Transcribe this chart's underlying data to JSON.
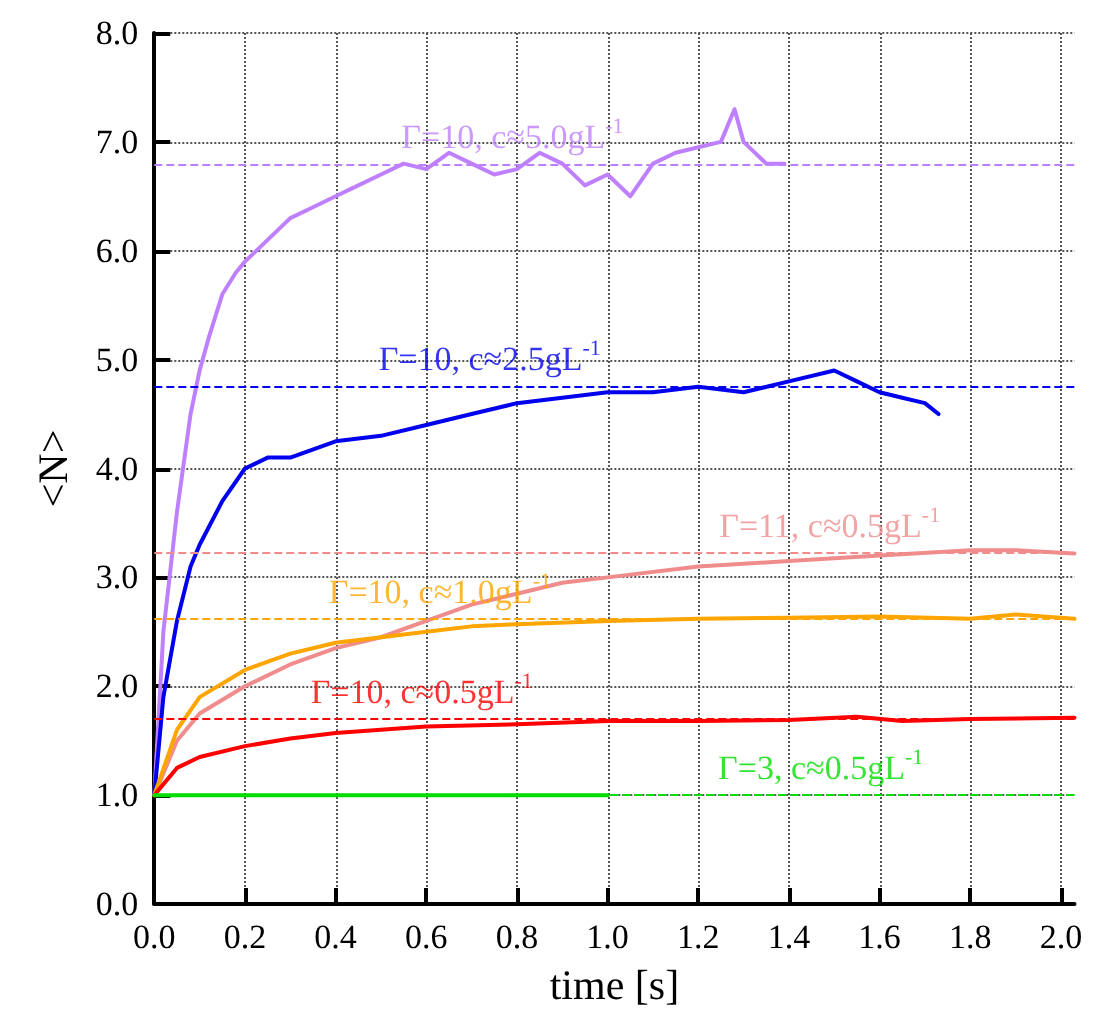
{
  "chart_data": {
    "type": "line",
    "xlabel": "time [s]",
    "ylabel": "<N>",
    "xlim": [
      0,
      2.03
    ],
    "ylim": [
      0,
      8
    ],
    "xticks": [
      {
        "value": 0,
        "label": "0.0"
      },
      {
        "value": 0.2,
        "label": "0.2"
      },
      {
        "value": 0.4,
        "label": "0.4"
      },
      {
        "value": 0.6,
        "label": "0.6"
      },
      {
        "value": 0.8,
        "label": "0.8"
      },
      {
        "value": 1,
        "label": "1.0"
      },
      {
        "value": 1.2,
        "label": "1.2"
      },
      {
        "value": 1.4,
        "label": "1.4"
      },
      {
        "value": 1.6,
        "label": "1.6"
      },
      {
        "value": 1.8,
        "label": "1.8"
      },
      {
        "value": 2,
        "label": "2.0"
      }
    ],
    "yticks": [
      {
        "value": 0,
        "label": "0.0"
      },
      {
        "value": 1,
        "label": "1.0"
      },
      {
        "value": 2,
        "label": "2.0"
      },
      {
        "value": 3,
        "label": "3.0"
      },
      {
        "value": 4,
        "label": "4.0"
      },
      {
        "value": 5,
        "label": "5.0"
      },
      {
        "value": 6,
        "label": "6.0"
      },
      {
        "value": 7,
        "label": "7.0"
      },
      {
        "value": 8,
        "label": "8.0"
      }
    ],
    "grid": true,
    "marker": "none",
    "line_style": "solid",
    "series": [
      {
        "color": "#bf80ff",
        "x": [
          0,
          0.02,
          0.05,
          0.08,
          0.1,
          0.12,
          0.15,
          0.18,
          0.2,
          0.25,
          0.3,
          0.35,
          0.4,
          0.45,
          0.5,
          0.55,
          0.6,
          0.65,
          0.7,
          0.75,
          0.8,
          0.85,
          0.9,
          0.95,
          1.0,
          1.05,
          1.1,
          1.15,
          1.2,
          1.25,
          1.28,
          1.3,
          1.35,
          1.39
        ],
        "values": [
          1.0,
          2.5,
          3.6,
          4.5,
          4.9,
          5.2,
          5.6,
          5.8,
          5.9,
          6.1,
          6.3,
          6.4,
          6.5,
          6.6,
          6.7,
          6.8,
          6.75,
          6.9,
          6.8,
          6.7,
          6.75,
          6.9,
          6.8,
          6.6,
          6.7,
          6.5,
          6.8,
          6.9,
          6.95,
          7.0,
          7.3,
          7.0,
          6.8,
          6.8
        ]
      },
      {
        "color": "#0000ee",
        "x": [
          0,
          0.02,
          0.05,
          0.08,
          0.1,
          0.15,
          0.2,
          0.25,
          0.3,
          0.4,
          0.5,
          0.6,
          0.7,
          0.8,
          0.9,
          1.0,
          1.1,
          1.2,
          1.3,
          1.4,
          1.5,
          1.55,
          1.6,
          1.65,
          1.7,
          1.73
        ],
        "values": [
          1.0,
          1.9,
          2.6,
          3.1,
          3.3,
          3.7,
          4.0,
          4.1,
          4.1,
          4.25,
          4.3,
          4.4,
          4.5,
          4.6,
          4.65,
          4.7,
          4.7,
          4.75,
          4.7,
          4.8,
          4.9,
          4.8,
          4.7,
          4.65,
          4.6,
          4.5
        ]
      },
      {
        "color": "#f08c8c",
        "x": [
          0,
          0.05,
          0.1,
          0.2,
          0.3,
          0.4,
          0.5,
          0.6,
          0.7,
          0.8,
          0.9,
          1.0,
          1.2,
          1.4,
          1.6,
          1.8,
          1.9,
          2.03
        ],
        "values": [
          1.0,
          1.5,
          1.75,
          2.0,
          2.2,
          2.35,
          2.45,
          2.6,
          2.75,
          2.85,
          2.95,
          3.0,
          3.1,
          3.15,
          3.2,
          3.25,
          3.25,
          3.22
        ]
      },
      {
        "color": "#ffa500",
        "x": [
          0,
          0.05,
          0.1,
          0.2,
          0.3,
          0.4,
          0.5,
          0.6,
          0.7,
          0.8,
          1.0,
          1.2,
          1.4,
          1.6,
          1.8,
          1.9,
          2.03
        ],
        "values": [
          1.0,
          1.6,
          1.9,
          2.15,
          2.3,
          2.4,
          2.45,
          2.5,
          2.55,
          2.57,
          2.6,
          2.62,
          2.63,
          2.64,
          2.62,
          2.66,
          2.62
        ]
      },
      {
        "color": "#ff0000",
        "x": [
          0,
          0.05,
          0.1,
          0.2,
          0.3,
          0.4,
          0.5,
          0.6,
          0.8,
          1.0,
          1.2,
          1.4,
          1.55,
          1.65,
          1.8,
          2.03
        ],
        "values": [
          1.0,
          1.25,
          1.35,
          1.45,
          1.52,
          1.57,
          1.6,
          1.63,
          1.65,
          1.68,
          1.68,
          1.69,
          1.72,
          1.68,
          1.7,
          1.71
        ]
      },
      {
        "color": "#00dd00",
        "x": [
          0,
          1.0
        ],
        "values": [
          1.0,
          1.0
        ]
      }
    ],
    "ref_lines": [
      {
        "axis": "y",
        "value": 6.8,
        "color": "#bf80ff",
        "line_style": "dashed"
      },
      {
        "axis": "y",
        "value": 4.76,
        "color": "#0000ee",
        "line_style": "dashed"
      },
      {
        "axis": "y",
        "value": 3.22,
        "color": "#f08c8c",
        "line_style": "dashed"
      },
      {
        "axis": "y",
        "value": 2.62,
        "color": "#ffa500",
        "line_style": "dashed"
      },
      {
        "axis": "y",
        "value": 1.7,
        "color": "#ff0000",
        "line_style": "dashed"
      },
      {
        "axis": "y",
        "value": 1.0,
        "color": "#00dd00",
        "line_style": "dashed"
      }
    ],
    "annotations": [
      {
        "text": "Γ=10, c≈5.0gL$^{-1}$",
        "x": 0.79,
        "y": 6.8
      },
      {
        "text": "Γ=10, c≈2.5gL$^{-1}$",
        "x": 0.74,
        "y": 4.76
      },
      {
        "text": "Γ=11, c≈0.5gL$^{-1}$",
        "x": 1.49,
        "y": 3.22
      },
      {
        "text": "Γ=10, c≈1.0gL$^{-1}$",
        "x": 0.63,
        "y": 2.62
      },
      {
        "text": "Γ=10, c≈0.5gL$^{-1}$",
        "x": 0.59,
        "y": 1.7
      },
      {
        "text": "Γ=3, c≈0.5gL$^{-1}$",
        "x": 1.47,
        "y": 1.0
      }
    ]
  }
}
